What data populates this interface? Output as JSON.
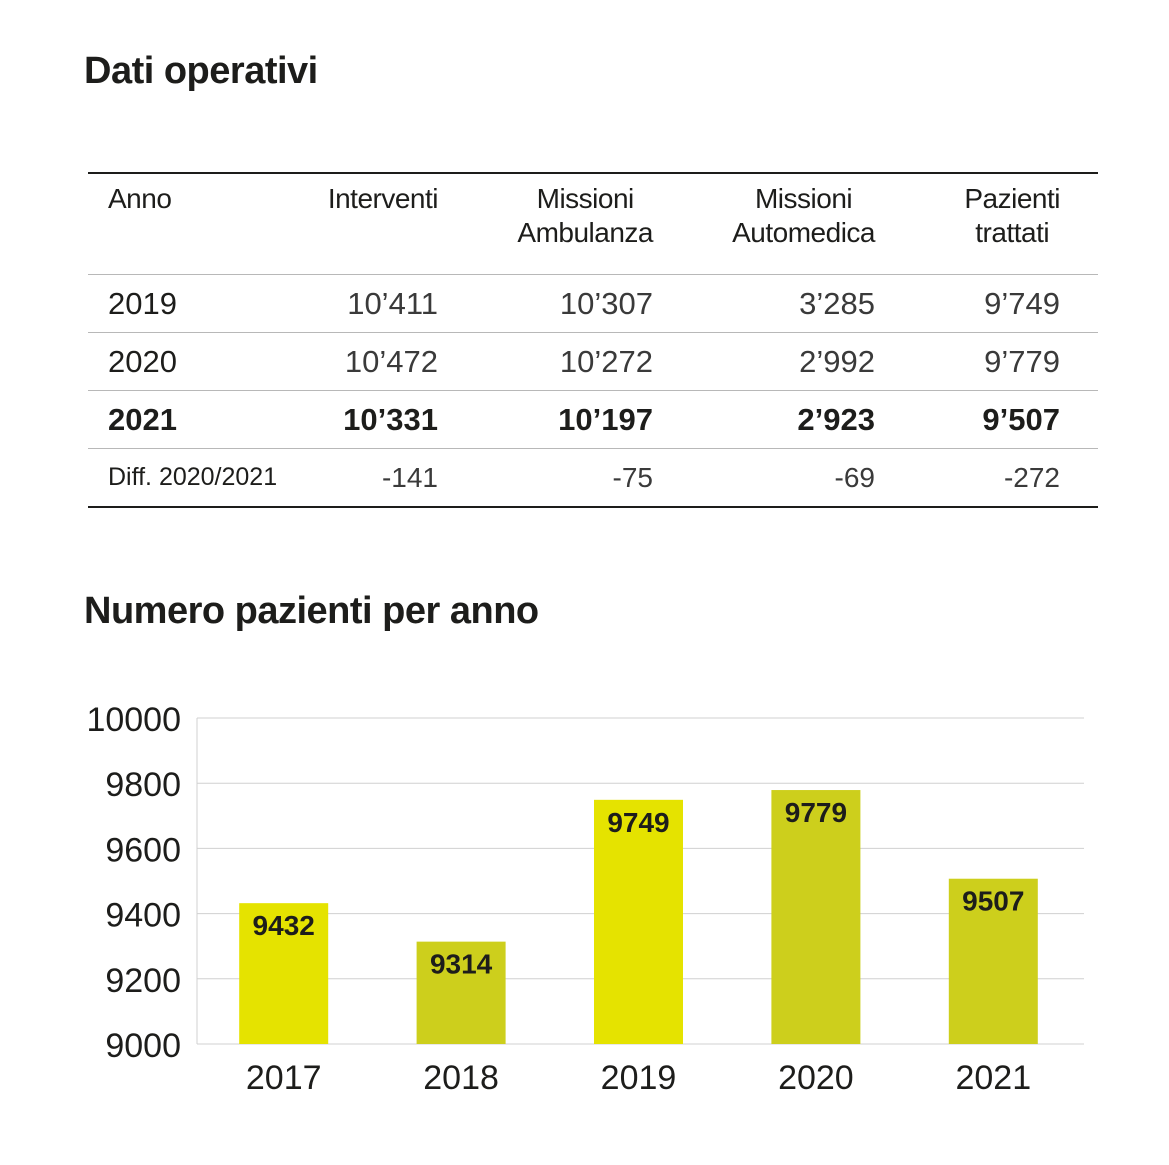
{
  "table_section": {
    "title": "Dati operativi",
    "headers": [
      {
        "line1": "Anno",
        "line2": ""
      },
      {
        "line1": "Interventi",
        "line2": ""
      },
      {
        "line1": "Missioni",
        "line2": "Ambulanza"
      },
      {
        "line1": "Missioni",
        "line2": "Automedica"
      },
      {
        "line1": "Pazienti",
        "line2": "trattati"
      }
    ],
    "rows": [
      {
        "cells": [
          "2019",
          "10’411",
          "10’307",
          "3’285",
          "9’749"
        ]
      },
      {
        "cells": [
          "2020",
          "10’472",
          "10’272",
          "2’992",
          "9’779"
        ]
      },
      {
        "cells": [
          "2021",
          "10’331",
          "10’197",
          "2’923",
          "9’507"
        ]
      },
      {
        "cells": [
          "Diff. 2020/2021",
          "-141",
          "-75",
          "-69",
          "-272"
        ]
      }
    ]
  },
  "chart_section": {
    "title": "Numero pazienti per anno"
  },
  "chart_data": {
    "type": "bar",
    "title": "Numero pazienti per anno",
    "categories": [
      "2017",
      "2018",
      "2019",
      "2020",
      "2021"
    ],
    "values": [
      9432,
      9314,
      9749,
      9779,
      9507
    ],
    "data_labels": [
      "9432",
      "9314",
      "9749",
      "9779",
      "9507"
    ],
    "ylim": [
      9000,
      10000
    ],
    "yticks": [
      9000,
      9200,
      9400,
      9600,
      9800,
      10000
    ],
    "ytick_labels": [
      "9000",
      "9200",
      "9400",
      "9600",
      "9800",
      "10000"
    ],
    "xlabel": "",
    "ylabel": "",
    "grid": true,
    "bar_colors": [
      "#e5e300",
      "#cdcf1c",
      "#e5e300",
      "#cdcf1c",
      "#cdcf1c"
    ],
    "grid_color": "#d0d0d0"
  }
}
